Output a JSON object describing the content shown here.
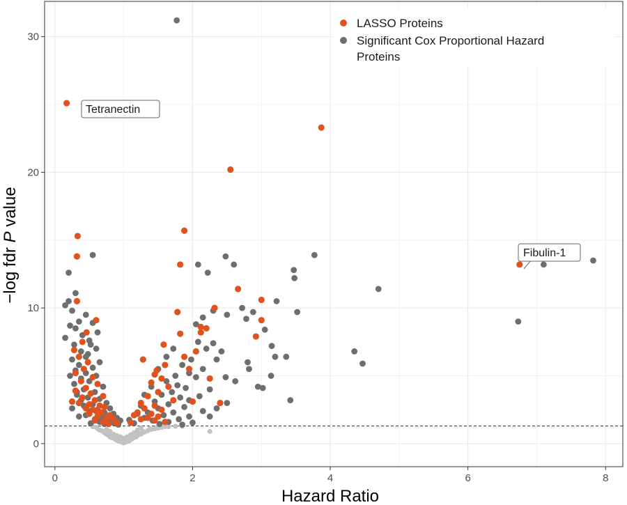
{
  "colors": {
    "lasso": "#e0531f",
    "significant": "#6e6e6e",
    "nonsignificant": "#c2c2c2",
    "grid": "#ebebeb",
    "panel_border": "#333333",
    "threshold_line": "#444444"
  },
  "chart_data": {
    "type": "scatter",
    "title": "",
    "xlabel": "Hazard Ratio",
    "ylabel_prefix": "−log fdr ",
    "ylabel_italic": "P",
    "ylabel_suffix": " value",
    "xlim": [
      -0.15,
      8.25
    ],
    "ylim": [
      -1.7,
      32.6
    ],
    "x_ticks": [
      0,
      2,
      4,
      6,
      8
    ],
    "x_tick_labels": [
      "0",
      "2",
      "4",
      "6",
      "8"
    ],
    "y_ticks": [
      0,
      10,
      20,
      30
    ],
    "y_tick_labels": [
      "0",
      "10",
      "20",
      "30"
    ],
    "grid": true,
    "legend_position": "top-right",
    "threshold": {
      "y": 1.3,
      "style": "dashed"
    },
    "legend": [
      {
        "label": "LASSO Proteins",
        "color": "#e0531f"
      },
      {
        "label": "Significant Cox Proportional Hazard Proteins",
        "lines": [
          "Significant Cox Proportional Hazard",
          "Proteins"
        ],
        "color": "#6e6e6e"
      }
    ],
    "annotations": [
      {
        "text": "Tetranectin",
        "x": 0.17,
        "y": 25.1
      },
      {
        "text": "Fibulin-1",
        "x": 6.75,
        "y": 13.2
      }
    ],
    "series": [
      {
        "name": "LASSO Proteins",
        "points": [
          [
            0.17,
            25.1
          ],
          [
            0.33,
            15.3
          ],
          [
            0.32,
            13.8
          ],
          [
            0.32,
            10.5
          ],
          [
            0.6,
            9.1
          ],
          [
            0.46,
            8.2
          ],
          [
            0.4,
            7.5
          ],
          [
            0.28,
            6.9
          ],
          [
            0.35,
            6.4
          ],
          [
            0.48,
            6.0
          ],
          [
            0.42,
            5.5
          ],
          [
            0.3,
            5.2
          ],
          [
            0.55,
            4.9
          ],
          [
            0.38,
            4.6
          ],
          [
            0.62,
            4.4
          ],
          [
            0.45,
            4.1
          ],
          [
            0.3,
            3.9
          ],
          [
            0.52,
            3.7
          ],
          [
            0.7,
            3.5
          ],
          [
            0.4,
            3.4
          ],
          [
            0.58,
            3.2
          ],
          [
            0.25,
            3.1
          ],
          [
            0.35,
            3.0
          ],
          [
            0.5,
            2.9
          ],
          [
            0.65,
            2.8
          ],
          [
            0.72,
            2.7
          ],
          [
            0.45,
            2.6
          ],
          [
            0.55,
            2.5
          ],
          [
            0.6,
            2.4
          ],
          [
            0.68,
            2.3
          ],
          [
            0.5,
            2.2
          ],
          [
            0.8,
            2.1
          ],
          [
            0.62,
            2.0
          ],
          [
            0.75,
            1.9
          ],
          [
            0.85,
            1.8
          ],
          [
            0.58,
            1.7
          ],
          [
            0.7,
            1.6
          ],
          [
            0.9,
            1.5
          ],
          [
            0.78,
            1.45
          ],
          [
            3.87,
            23.3
          ],
          [
            2.55,
            20.2
          ],
          [
            1.88,
            15.7
          ],
          [
            1.82,
            13.2
          ],
          [
            2.66,
            11.4
          ],
          [
            3.0,
            10.6
          ],
          [
            2.32,
            10.0
          ],
          [
            1.78,
            9.7
          ],
          [
            3.0,
            9.1
          ],
          [
            2.12,
            8.6
          ],
          [
            2.2,
            8.5
          ],
          [
            2.12,
            8.2
          ],
          [
            1.82,
            8.1
          ],
          [
            2.92,
            7.9
          ],
          [
            1.58,
            7.3
          ],
          [
            1.88,
            6.4
          ],
          [
            1.28,
            6.2
          ],
          [
            1.6,
            5.8
          ],
          [
            1.48,
            5.4
          ],
          [
            1.45,
            5.1
          ],
          [
            1.55,
            4.8
          ],
          [
            1.4,
            4.5
          ],
          [
            1.65,
            4.2
          ],
          [
            1.5,
            3.8
          ],
          [
            1.35,
            3.5
          ],
          [
            1.72,
            3.2
          ],
          [
            1.25,
            3.0
          ],
          [
            1.45,
            2.8
          ],
          [
            1.3,
            2.6
          ],
          [
            1.55,
            2.5
          ],
          [
            1.2,
            2.3
          ],
          [
            1.4,
            2.2
          ],
          [
            1.15,
            2.1
          ],
          [
            1.5,
            2.0
          ],
          [
            1.35,
            1.9
          ],
          [
            1.25,
            1.8
          ],
          [
            1.45,
            1.7
          ],
          [
            1.6,
            1.6
          ],
          [
            1.1,
            1.55
          ],
          [
            2.0,
            3.1
          ],
          [
            2.4,
            3.0
          ],
          [
            2.25,
            4.8
          ],
          [
            2.05,
            6.8
          ],
          [
            1.95,
            5.5
          ],
          [
            6.75,
            13.2
          ]
        ]
      },
      {
        "name": "Significant Cox Proportional Hazard Proteins",
        "points": [
          [
            1.77,
            31.2
          ],
          [
            0.55,
            13.9
          ],
          [
            0.2,
            12.6
          ],
          [
            0.3,
            11.1
          ],
          [
            0.2,
            10.5
          ],
          [
            0.15,
            10.2
          ],
          [
            0.25,
            9.8
          ],
          [
            0.45,
            9.5
          ],
          [
            0.35,
            9.0
          ],
          [
            0.55,
            8.9
          ],
          [
            0.22,
            8.7
          ],
          [
            0.3,
            8.5
          ],
          [
            0.4,
            8.0
          ],
          [
            0.15,
            7.8
          ],
          [
            0.5,
            7.6
          ],
          [
            0.28,
            7.3
          ],
          [
            0.6,
            7.0
          ],
          [
            0.38,
            6.8
          ],
          [
            0.48,
            6.6
          ],
          [
            0.25,
            6.2
          ],
          [
            0.65,
            6.0
          ],
          [
            0.35,
            5.8
          ],
          [
            0.55,
            5.6
          ],
          [
            0.3,
            5.4
          ],
          [
            0.45,
            5.2
          ],
          [
            0.6,
            5.0
          ],
          [
            0.38,
            4.8
          ],
          [
            0.5,
            4.6
          ],
          [
            0.28,
            4.4
          ],
          [
            0.7,
            4.2
          ],
          [
            0.42,
            4.0
          ],
          [
            0.58,
            3.8
          ],
          [
            0.32,
            3.6
          ],
          [
            0.48,
            3.4
          ],
          [
            0.65,
            3.3
          ],
          [
            0.38,
            3.2
          ],
          [
            0.75,
            3.0
          ],
          [
            0.55,
            2.9
          ],
          [
            0.42,
            2.8
          ],
          [
            0.8,
            2.6
          ],
          [
            0.62,
            2.5
          ],
          [
            0.5,
            2.4
          ],
          [
            0.72,
            2.3
          ],
          [
            0.85,
            2.2
          ],
          [
            0.45,
            2.1
          ],
          [
            0.68,
            2.0
          ],
          [
            0.9,
            1.9
          ],
          [
            0.58,
            1.8
          ],
          [
            0.78,
            1.75
          ],
          [
            0.95,
            1.7
          ],
          [
            0.65,
            1.6
          ],
          [
            0.85,
            1.55
          ],
          [
            0.52,
            1.5
          ],
          [
            0.72,
            1.45
          ],
          [
            0.92,
            1.4
          ],
          [
            0.35,
            2.0
          ],
          [
            0.25,
            2.6
          ],
          [
            0.32,
            3.8
          ],
          [
            0.22,
            5.0
          ],
          [
            0.45,
            6.4
          ],
          [
            0.52,
            7.3
          ],
          [
            0.62,
            8.2
          ],
          [
            2.08,
            13.2
          ],
          [
            2.22,
            12.6
          ],
          [
            2.48,
            13.8
          ],
          [
            2.6,
            13.2
          ],
          [
            2.3,
            9.8
          ],
          [
            2.5,
            9.5
          ],
          [
            2.72,
            10.0
          ],
          [
            2.88,
            9.7
          ],
          [
            3.22,
            10.5
          ],
          [
            2.78,
            9.2
          ],
          [
            3.05,
            8.4
          ],
          [
            3.15,
            7.2
          ],
          [
            3.2,
            6.4
          ],
          [
            3.36,
            6.4
          ],
          [
            2.8,
            6.0
          ],
          [
            2.82,
            5.5
          ],
          [
            3.14,
            5.0
          ],
          [
            2.95,
            4.2
          ],
          [
            3.02,
            4.1
          ],
          [
            3.42,
            3.2
          ],
          [
            2.48,
            4.9
          ],
          [
            2.62,
            4.6
          ],
          [
            2.35,
            6.2
          ],
          [
            2.2,
            7.0
          ],
          [
            2.08,
            7.5
          ],
          [
            2.3,
            7.4
          ],
          [
            2.42,
            6.8
          ],
          [
            1.98,
            6.2
          ],
          [
            1.85,
            5.8
          ],
          [
            2.15,
            5.5
          ],
          [
            1.95,
            5.2
          ],
          [
            2.05,
            4.9
          ],
          [
            1.75,
            5.0
          ],
          [
            1.62,
            4.6
          ],
          [
            1.78,
            4.3
          ],
          [
            1.9,
            4.1
          ],
          [
            2.25,
            4.0
          ],
          [
            1.7,
            3.8
          ],
          [
            1.55,
            3.6
          ],
          [
            2.1,
            3.5
          ],
          [
            1.82,
            3.4
          ],
          [
            1.95,
            3.2
          ],
          [
            1.45,
            3.1
          ],
          [
            2.35,
            2.6
          ],
          [
            1.65,
            2.9
          ],
          [
            1.25,
            2.8
          ],
          [
            1.88,
            2.7
          ],
          [
            1.5,
            2.6
          ],
          [
            2.15,
            2.4
          ],
          [
            1.35,
            2.3
          ],
          [
            1.72,
            2.3
          ],
          [
            1.2,
            2.2
          ],
          [
            1.58,
            2.1
          ],
          [
            1.95,
            2.0
          ],
          [
            1.3,
            1.9
          ],
          [
            1.8,
            1.8
          ],
          [
            1.08,
            1.75
          ],
          [
            1.42,
            1.7
          ],
          [
            1.65,
            1.6
          ],
          [
            2.0,
            1.55
          ],
          [
            1.15,
            1.5
          ],
          [
            1.52,
            1.45
          ],
          [
            1.85,
            1.4
          ],
          [
            2.05,
            8.8
          ],
          [
            2.15,
            9.3
          ],
          [
            1.72,
            7.0
          ],
          [
            1.62,
            6.4
          ],
          [
            1.5,
            5.5
          ],
          [
            1.4,
            4.2
          ],
          [
            1.3,
            3.6
          ],
          [
            2.5,
            3.0
          ],
          [
            2.25,
            2.0
          ],
          [
            3.77,
            13.9
          ],
          [
            3.47,
            12.8
          ],
          [
            3.48,
            12.2
          ],
          [
            3.52,
            9.7
          ],
          [
            4.7,
            11.4
          ],
          [
            4.35,
            6.8
          ],
          [
            4.47,
            5.9
          ],
          [
            6.73,
            9.0
          ],
          [
            7.1,
            13.2
          ],
          [
            7.82,
            13.5
          ]
        ]
      },
      {
        "name": "",
        "points": [
          [
            0.6,
            1.2
          ],
          [
            0.65,
            1.0
          ],
          [
            0.7,
            0.9
          ],
          [
            0.72,
            0.8
          ],
          [
            0.75,
            0.7
          ],
          [
            0.78,
            0.6
          ],
          [
            0.8,
            0.5
          ],
          [
            0.82,
            0.45
          ],
          [
            0.85,
            0.4
          ],
          [
            0.88,
            0.3
          ],
          [
            0.9,
            0.25
          ],
          [
            0.92,
            0.2
          ],
          [
            0.95,
            0.15
          ],
          [
            0.98,
            0.1
          ],
          [
            1.0,
            0.05
          ],
          [
            1.02,
            0.1
          ],
          [
            1.05,
            0.15
          ],
          [
            1.08,
            0.2
          ],
          [
            1.1,
            0.3
          ],
          [
            1.12,
            0.35
          ],
          [
            1.15,
            0.45
          ],
          [
            1.18,
            0.5
          ],
          [
            1.2,
            0.6
          ],
          [
            1.25,
            0.7
          ],
          [
            1.3,
            0.85
          ],
          [
            1.35,
            0.95
          ],
          [
            1.4,
            1.05
          ],
          [
            1.45,
            1.1
          ],
          [
            1.5,
            1.15
          ],
          [
            1.55,
            1.2
          ],
          [
            1.6,
            1.25
          ],
          [
            0.55,
            1.25
          ],
          [
            0.62,
            1.1
          ],
          [
            0.68,
            0.95
          ],
          [
            0.73,
            0.85
          ],
          [
            0.77,
            0.75
          ],
          [
            0.83,
            0.55
          ],
          [
            0.87,
            0.45
          ],
          [
            0.93,
            0.3
          ],
          [
            1.03,
            0.2
          ],
          [
            1.07,
            0.3
          ],
          [
            1.13,
            0.5
          ],
          [
            1.22,
            0.75
          ],
          [
            1.28,
            0.9
          ],
          [
            1.38,
            1.1
          ],
          [
            1.48,
            1.2
          ],
          [
            1.65,
            1.25
          ],
          [
            1.75,
            1.28
          ],
          [
            1.85,
            1.28
          ],
          [
            0.85,
            0.7
          ],
          [
            0.9,
            0.6
          ],
          [
            0.95,
            0.5
          ],
          [
            1.0,
            0.4
          ],
          [
            1.05,
            0.5
          ],
          [
            1.1,
            0.65
          ],
          [
            1.15,
            0.8
          ],
          [
            0.8,
            0.9
          ],
          [
            0.75,
            1.05
          ],
          [
            1.2,
            1.0
          ],
          [
            1.25,
            1.15
          ],
          [
            2.25,
            0.9
          ]
        ]
      }
    ]
  }
}
